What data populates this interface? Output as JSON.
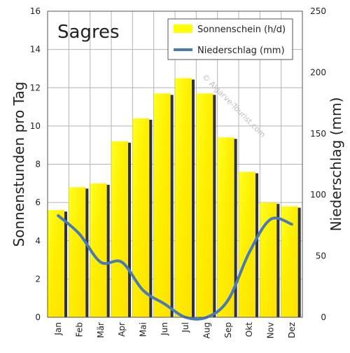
{
  "chart_data": {
    "type": "bar",
    "title": "Sagres",
    "watermark": "© Algarve-Tourist.com",
    "categories": [
      "Jan",
      "Feb",
      "Mär",
      "Apr",
      "Mai",
      "Jun",
      "Jul",
      "Aug",
      "Sep",
      "Okt",
      "Nov",
      "Dez"
    ],
    "series": [
      {
        "name": "Sonnenschein (h/d)",
        "type": "bar",
        "axis": "left",
        "color": "#ffff00",
        "values": [
          5.6,
          6.8,
          7.0,
          9.2,
          10.4,
          11.7,
          12.5,
          11.7,
          9.4,
          7.6,
          6.0,
          5.8
        ]
      },
      {
        "name": "Niederschlag (mm)",
        "type": "line",
        "axis": "right",
        "color": "#4a7ab5",
        "values": [
          83,
          68,
          45,
          45,
          22,
          11,
          0,
          0,
          14,
          53,
          80,
          76
        ]
      }
    ],
    "ylabel": "Sonnenstunden pro Tag",
    "ylabel_right": "Niederschlag (mm)",
    "ylim": [
      0,
      16
    ],
    "ylim_right": [
      0,
      250
    ],
    "yticks": [
      "0",
      "2",
      "4",
      "6",
      "8",
      "10",
      "12",
      "14",
      "16"
    ],
    "yticks_right": [
      "0",
      "50",
      "100",
      "150",
      "200",
      "250"
    ],
    "grid": true,
    "legend_position": "top-right",
    "colors": {
      "grid": "#b4b4b4",
      "bar_shadow": "#333333",
      "background": "#ffffff"
    }
  }
}
